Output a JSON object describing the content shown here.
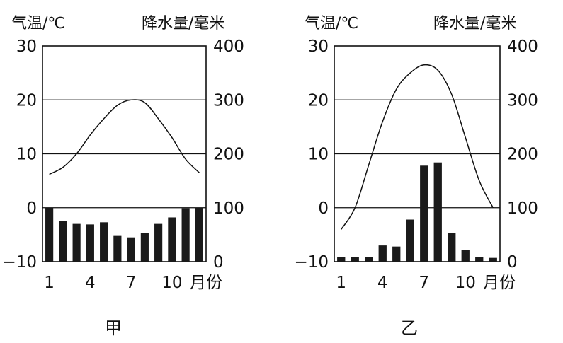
{
  "chart_data": [
    {
      "type": "bar+line",
      "name_label": "甲",
      "left_axis_label": "气温/℃",
      "right_axis_label": "降水量/毫米",
      "x_axis_unit": "月份",
      "x_ticks": [
        "1",
        "4",
        "7",
        "10"
      ],
      "left_ticks": [
        "30",
        "20",
        "10",
        "0",
        "−10"
      ],
      "right_ticks": [
        "400",
        "300",
        "200",
        "100",
        "0"
      ],
      "ylim_left": [
        -10,
        30
      ],
      "ylim_right": [
        0,
        400
      ],
      "months": [
        1,
        2,
        3,
        4,
        5,
        6,
        7,
        8,
        9,
        10,
        11,
        12
      ],
      "temperature": [
        6.2,
        7.5,
        10.0,
        13.5,
        16.5,
        19.0,
        20.0,
        19.5,
        16.5,
        13.0,
        9.0,
        6.5
      ],
      "precipitation": [
        100,
        75,
        70,
        69,
        73,
        49,
        45,
        53,
        70,
        82,
        99,
        100
      ]
    },
    {
      "type": "bar+line",
      "name_label": "乙",
      "left_axis_label": "气温/℃",
      "right_axis_label": "降水量/毫米",
      "x_axis_unit": "月份",
      "x_ticks": [
        "1",
        "4",
        "7",
        "10"
      ],
      "left_ticks": [
        "30",
        "20",
        "10",
        "0",
        "−10"
      ],
      "right_ticks": [
        "400",
        "300",
        "200",
        "100",
        "0"
      ],
      "ylim_left": [
        -10,
        30
      ],
      "ylim_right": [
        0,
        400
      ],
      "months": [
        1,
        2,
        3,
        4,
        5,
        6,
        7,
        8,
        9,
        10,
        11,
        12
      ],
      "temperature": [
        -4.0,
        0.0,
        8.0,
        16.0,
        22.0,
        25.0,
        26.5,
        25.5,
        21.0,
        13.0,
        5.0,
        0.0
      ],
      "precipitation": [
        9,
        9,
        9,
        30,
        28,
        78,
        178,
        184,
        53,
        21,
        8,
        7
      ]
    }
  ]
}
